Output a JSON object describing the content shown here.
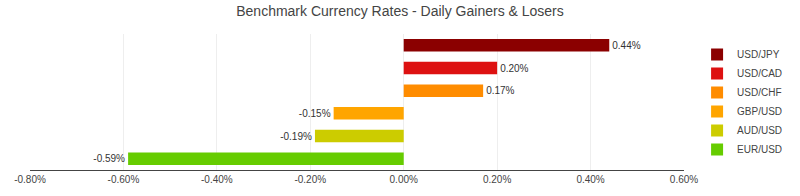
{
  "chart_data": {
    "type": "bar",
    "orientation": "horizontal",
    "title": "Benchmark Currency Rates - Daily Gainers & Losers",
    "categories": [
      "USD/JPY",
      "USD/CAD",
      "USD/CHF",
      "GBP/USD",
      "AUD/USD",
      "EUR/USD"
    ],
    "values": [
      0.44,
      0.2,
      0.17,
      -0.15,
      -0.19,
      -0.59
    ],
    "value_labels": [
      "0.44%",
      "0.20%",
      "0.17%",
      "-0.15%",
      "-0.19%",
      "-0.59%"
    ],
    "colors": [
      "#8B0000",
      "#DD1111",
      "#FF8C00",
      "#FFA500",
      "#CCCC00",
      "#66CC00"
    ],
    "xlim": [
      -0.8,
      0.6
    ],
    "xticks": [
      {
        "value": -0.8,
        "label": "-0.80%"
      },
      {
        "value": -0.6,
        "label": "-0.60%"
      },
      {
        "value": -0.4,
        "label": "-0.40%"
      },
      {
        "value": -0.2,
        "label": "-0.20%"
      },
      {
        "value": 0.0,
        "label": "0.00%"
      },
      {
        "value": 0.2,
        "label": "0.20%"
      },
      {
        "value": 0.4,
        "label": "0.40%"
      },
      {
        "value": 0.6,
        "label": "0.60%"
      }
    ],
    "grid": true,
    "legend": "right",
    "data_labels": true,
    "tick_labels": "x"
  }
}
